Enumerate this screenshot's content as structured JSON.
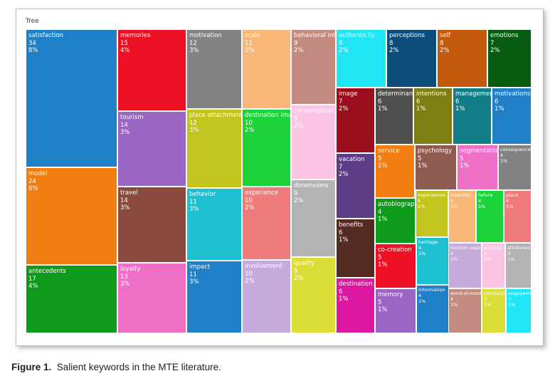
{
  "chart_data": {
    "type": "treemap",
    "title": "Tree",
    "items": [
      {
        "label": "satisfaction",
        "count": "34",
        "pct": "8%",
        "color": "#1f80c8"
      },
      {
        "label": "model",
        "count": "24",
        "pct": "6%",
        "color": "#f07e13"
      },
      {
        "label": "antecedents",
        "count": "17",
        "pct": "4%",
        "color": "#0e9a1a"
      },
      {
        "label": "memories",
        "count": "15",
        "pct": "4%",
        "color": "#ee1125"
      },
      {
        "label": "tourism",
        "count": "14",
        "pct": "3%",
        "color": "#9a66c4"
      },
      {
        "label": "travel",
        "count": "14",
        "pct": "3%",
        "color": "#8a4b3e"
      },
      {
        "label": "loyalty",
        "count": "13",
        "pct": "3%",
        "color": "#ee70c6"
      },
      {
        "label": "motivation",
        "count": "12",
        "pct": "3%",
        "color": "#838383"
      },
      {
        "label": "place attachment",
        "count": "12",
        "pct": "3%",
        "color": "#c3c51e"
      },
      {
        "label": "behavior",
        "count": "11",
        "pct": "3%",
        "color": "#1ec0d0"
      },
      {
        "label": "impact",
        "count": "11",
        "pct": "3%",
        "color": "#1f80c8"
      },
      {
        "label": "scale",
        "count": "11",
        "pct": "3%",
        "color": "#f8b776"
      },
      {
        "label": "destination image",
        "count": "10",
        "pct": "2%",
        "color": "#1cd43a"
      },
      {
        "label": "experience",
        "count": "10",
        "pct": "2%",
        "color": "#f07b7b"
      },
      {
        "label": "involvement",
        "count": "10",
        "pct": "2%",
        "color": "#c7abdc"
      },
      {
        "label": "behavioral intentions",
        "count": "9",
        "pct": "2%",
        "color": "#c38b80"
      },
      {
        "label": "consumption",
        "count": "9",
        "pct": "2%",
        "color": "#fbc4e2"
      },
      {
        "label": "dimensions",
        "count": "9",
        "pct": "2%",
        "color": "#b3b3b3"
      },
      {
        "label": "quality",
        "count": "9",
        "pct": "2%",
        "color": "#dcdc38"
      },
      {
        "label": "authenticity",
        "count": "8",
        "pct": "2%",
        "color": "#1fe5f5"
      },
      {
        "label": "perceptions",
        "count": "8",
        "pct": "2%",
        "color": "#0b4c79"
      },
      {
        "label": "self",
        "count": "8",
        "pct": "2%",
        "color": "#c35a0e"
      },
      {
        "label": "emotions",
        "count": "7",
        "pct": "2%",
        "color": "#085c12"
      },
      {
        "label": "image",
        "count": "7",
        "pct": "2%",
        "color": "#9b0e1d"
      },
      {
        "label": "vacation",
        "count": "7",
        "pct": "2%",
        "color": "#5c3d86"
      },
      {
        "label": "benefits",
        "count": "6",
        "pct": "1%",
        "color": "#542a22"
      },
      {
        "label": "destination",
        "count": "6",
        "pct": "1%",
        "color": "#dd17a0"
      },
      {
        "label": "determinants",
        "count": "6",
        "pct": "1%",
        "color": "#4e4e4e"
      },
      {
        "label": "intentions",
        "count": "6",
        "pct": "1%",
        "color": "#7d7f12"
      },
      {
        "label": "management",
        "count": "6",
        "pct": "1%",
        "color": "#127e88"
      },
      {
        "label": "motivations",
        "count": "6",
        "pct": "1%",
        "color": "#1f80c8"
      },
      {
        "label": "service",
        "count": "5",
        "pct": "1%",
        "color": "#f07e13"
      },
      {
        "label": "psychology",
        "count": "5",
        "pct": "1%",
        "color": "#8f5b51"
      },
      {
        "label": "segmentation",
        "count": "5",
        "pct": "1%",
        "color": "#ee70c6"
      },
      {
        "label": "consequences",
        "count": "4",
        "pct": "1%",
        "color": "#838383"
      },
      {
        "label": "autobiographical memory",
        "count": "4",
        "pct": "1%",
        "color": "#0e9a1a"
      },
      {
        "label": "experiences",
        "count": "4",
        "pct": "1%",
        "color": "#c3c51e"
      },
      {
        "label": "intention",
        "count": "4",
        "pct": "1%",
        "color": "#f8b776"
      },
      {
        "label": "failure",
        "count": "4",
        "pct": "1%",
        "color": "#1cd43a"
      },
      {
        "label": "place",
        "count": "4",
        "pct": "1%",
        "color": "#f07b7b"
      },
      {
        "label": "co-creation",
        "count": "5",
        "pct": "1%",
        "color": "#ee1125"
      },
      {
        "label": "heritage",
        "count": "4",
        "pct": "1%",
        "color": "#1ec0d0"
      },
      {
        "label": "tourism experiences",
        "count": "4",
        "pct": "1%",
        "color": "#c7abdc"
      },
      {
        "label": "attitude",
        "count": "3",
        "pct": "1%",
        "color": "#fbc4e2"
      },
      {
        "label": "attributes",
        "count": "3",
        "pct": "1%",
        "color": "#b3b3b3"
      },
      {
        "label": "memory",
        "count": "5",
        "pct": "1%",
        "color": "#9a66c4"
      },
      {
        "label": "information",
        "count": "4",
        "pct": "1%",
        "color": "#1f80c8"
      },
      {
        "label": "word-of-mouth",
        "count": "4",
        "pct": "1%",
        "color": "#c38b80"
      },
      {
        "label": "satisfaction",
        "count": "3",
        "pct": "1%",
        "color": "#dcdc38"
      },
      {
        "label": "engagement",
        "count": "3",
        "pct": "1%",
        "color": "#1fe5f5"
      }
    ]
  },
  "caption": {
    "label": "Figure 1.",
    "text": "Salient keywords in the MTE literature."
  }
}
